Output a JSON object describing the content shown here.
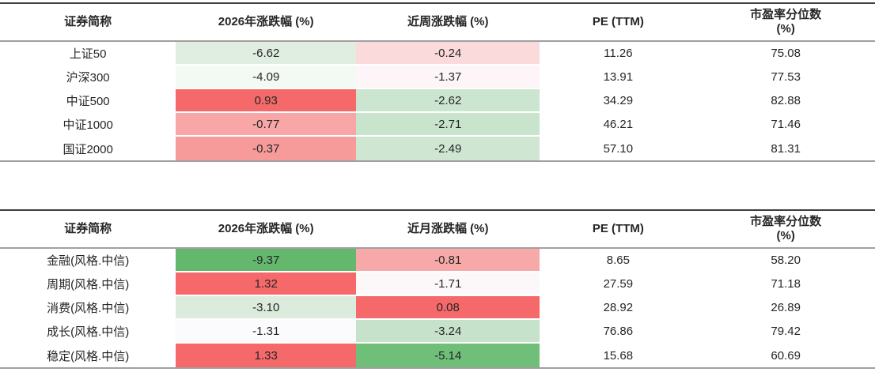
{
  "colors": {
    "strong_red": "#f5696a",
    "strong_green": "#64b86d",
    "medium_green": "#70bf79",
    "rule_dark": "#3d3d3d",
    "rule_gray": "#a0a0a0"
  },
  "chart_data": [
    {
      "type": "table",
      "name": "broad-index-valuation",
      "columns": [
        "证券简称",
        "2026年涨跌幅 (%)",
        "近周涨跌幅 (%)",
        "PE (TTM)",
        "市盈率分位数\n(%)"
      ],
      "rows": [
        {
          "cells": [
            {
              "text": "上证50"
            },
            {
              "text": "-6.62",
              "bg": "#dfeee0"
            },
            {
              "text": "-0.24",
              "bg": "#fbdadb"
            },
            {
              "text": "11.26"
            },
            {
              "text": "75.08"
            }
          ]
        },
        {
          "cells": [
            {
              "text": "沪深300"
            },
            {
              "text": "-4.09",
              "bg": "#f3f9f3"
            },
            {
              "text": "-1.37",
              "bg": "#fdf5f7"
            },
            {
              "text": "13.91"
            },
            {
              "text": "77.53"
            }
          ]
        },
        {
          "cells": [
            {
              "text": "中证500"
            },
            {
              "text": "0.93",
              "bg": "#f5696a"
            },
            {
              "text": "-2.62",
              "bg": "#cce5d0"
            },
            {
              "text": "34.29"
            },
            {
              "text": "82.88"
            }
          ]
        },
        {
          "cells": [
            {
              "text": "中证1000"
            },
            {
              "text": "-0.77",
              "bg": "#f8a7a6"
            },
            {
              "text": "-2.71",
              "bg": "#c9e4cd"
            },
            {
              "text": "46.21"
            },
            {
              "text": "71.46"
            }
          ]
        },
        {
          "cells": [
            {
              "text": "国证2000"
            },
            {
              "text": "-0.37",
              "bg": "#f79a9a"
            },
            {
              "text": "-2.49",
              "bg": "#cfe7d2"
            },
            {
              "text": "57.10"
            },
            {
              "text": "81.31"
            }
          ]
        }
      ]
    },
    {
      "type": "table",
      "name": "citic-style-index-valuation",
      "columns": [
        "证券简称",
        "2026年涨跌幅 (%)",
        "近月涨跌幅 (%)",
        "PE (TTM)",
        "市盈率分位数\n(%)"
      ],
      "rows": [
        {
          "cells": [
            {
              "text": "金融(风格.中信)"
            },
            {
              "text": "-9.37",
              "bg": "#64b86d"
            },
            {
              "text": "-0.81",
              "bg": "#f6a9a8"
            },
            {
              "text": "8.65"
            },
            {
              "text": "58.20"
            }
          ]
        },
        {
          "cells": [
            {
              "text": "周期(风格.中信)"
            },
            {
              "text": "1.32",
              "bg": "#f5696a"
            },
            {
              "text": "-1.71",
              "bg": "#fcf8f9"
            },
            {
              "text": "27.59"
            },
            {
              "text": "71.18"
            }
          ]
        },
        {
          "cells": [
            {
              "text": "消费(风格.中信)"
            },
            {
              "text": "-3.10",
              "bg": "#dbecdd"
            },
            {
              "text": "0.08",
              "bg": "#f5696a"
            },
            {
              "text": "28.92"
            },
            {
              "text": "26.89"
            }
          ]
        },
        {
          "cells": [
            {
              "text": "成长(风格.中信)"
            },
            {
              "text": "-1.31",
              "bg": "#fbfafc"
            },
            {
              "text": "-3.24",
              "bg": "#c6e2ca"
            },
            {
              "text": "76.86"
            },
            {
              "text": "79.42"
            }
          ]
        },
        {
          "cells": [
            {
              "text": "稳定(风格.中信)"
            },
            {
              "text": "1.33",
              "bg": "#f5696a"
            },
            {
              "text": "-5.14",
              "bg": "#70bf79"
            },
            {
              "text": "15.68"
            },
            {
              "text": "60.69"
            }
          ]
        }
      ]
    }
  ]
}
